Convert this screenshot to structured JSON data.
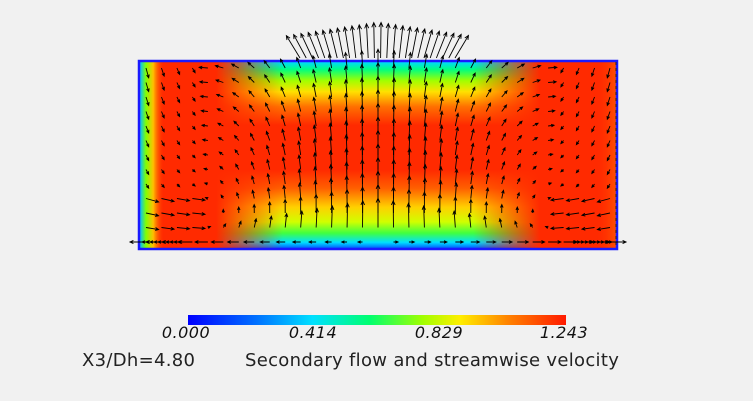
{
  "caption": "Secondary flow and streamwise velocity",
  "station": "X3/Dh=4.80",
  "colorbar": {
    "min": 0.0,
    "max": 1.243,
    "tick_labels": [
      "0.000",
      "0.414",
      "0.829",
      "1.243"
    ],
    "tick_values": [
      0.0,
      0.414,
      0.829,
      1.243
    ],
    "colormap": [
      "#0000ff",
      "#00c8ff",
      "#00ff80",
      "#80ff00",
      "#ffff00",
      "#ff8000",
      "#ff2000"
    ]
  },
  "colors": {
    "background": "#f1f1f1",
    "duct_wall": "#1a1aff",
    "arrow": "#000000",
    "core": "#ff3010"
  }
}
